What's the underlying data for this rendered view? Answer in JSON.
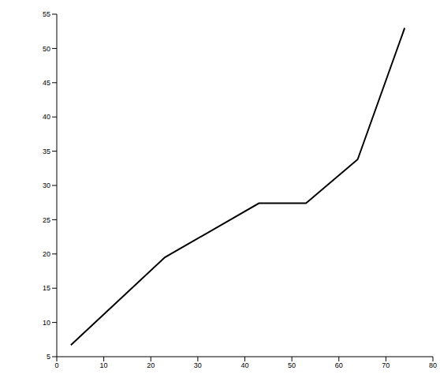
{
  "chart_data": {
    "type": "line",
    "x": [
      3,
      23,
      43,
      53,
      64,
      74
    ],
    "series": [
      {
        "name": "",
        "color": "#000000",
        "values": [
          6.7,
          19.5,
          27.4,
          27.4,
          33.8,
          53
        ]
      }
    ],
    "xlim": [
      0,
      80
    ],
    "xticks": [
      0,
      10,
      20,
      30,
      40,
      50,
      60,
      70,
      80
    ],
    "ylim": [
      5,
      55
    ],
    "yticks": [
      5,
      10,
      15,
      20,
      25,
      30,
      35,
      40,
      45,
      50,
      55
    ],
    "grid": false
  }
}
